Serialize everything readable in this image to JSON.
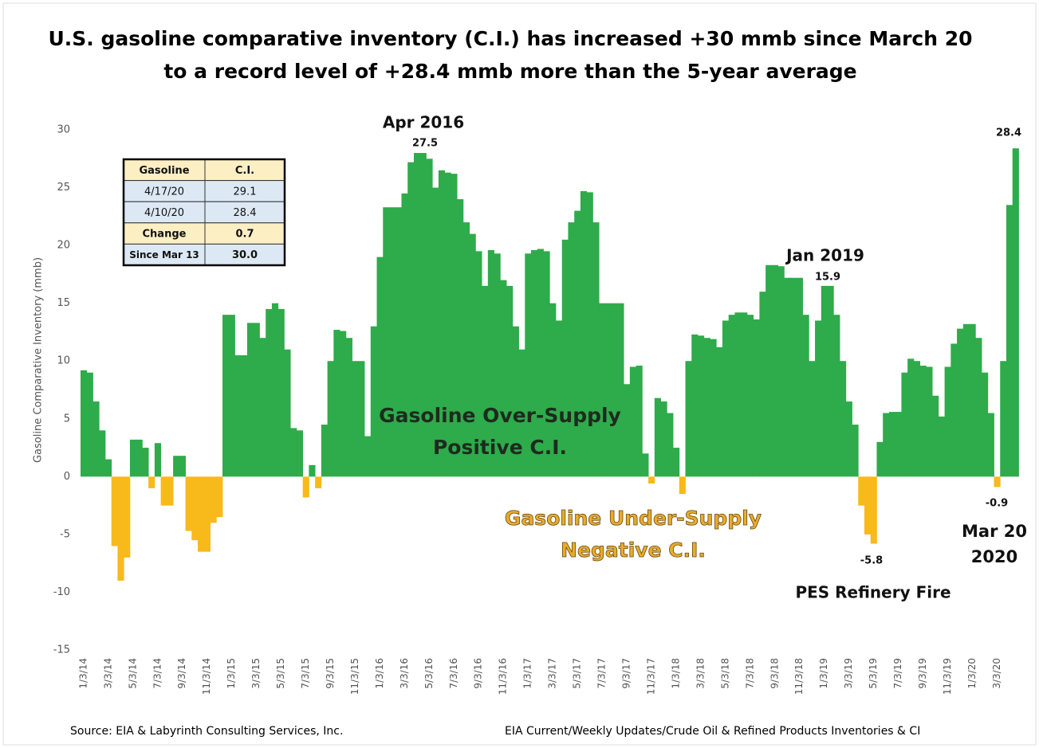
{
  "chart_data": {
    "type": "bar",
    "title": [
      "U.S. gasoline comparative inventory (C.I.) has increased +30 mmb since March 20",
      "to a record level of +28.4 mmb more than the 5-year average"
    ],
    "y_label": "Gasoline Comparative Inventory (mmb)",
    "categories": [
      "1/3/14",
      null,
      null,
      null,
      "3/3/14",
      null,
      null,
      null,
      "5/3/14",
      null,
      null,
      null,
      "7/3/14",
      null,
      null,
      null,
      "9/3/14",
      null,
      null,
      null,
      "11/3/14",
      null,
      null,
      null,
      "1/3/15",
      null,
      null,
      null,
      "3/3/15",
      null,
      null,
      null,
      "5/3/15",
      null,
      null,
      null,
      "7/3/15",
      null,
      null,
      null,
      "9/3/15",
      null,
      null,
      null,
      "11/3/15",
      null,
      null,
      null,
      "1/3/16",
      null,
      null,
      null,
      "3/3/16",
      null,
      null,
      null,
      "5/3/16",
      null,
      null,
      null,
      "7/3/16",
      null,
      null,
      null,
      "9/3/16",
      null,
      null,
      null,
      "11/3/16",
      null,
      null,
      null,
      "1/3/17",
      null,
      null,
      null,
      "3/3/17",
      null,
      null,
      null,
      "5/3/17",
      null,
      null,
      null,
      "7/3/17",
      null,
      null,
      null,
      "9/3/17",
      null,
      null,
      null,
      "11/3/17",
      null,
      null,
      null,
      "1/3/18",
      null,
      null,
      null,
      "3/3/18",
      null,
      null,
      null,
      "5/3/18",
      null,
      null,
      null,
      "7/3/18",
      null,
      null,
      null,
      "9/3/18",
      null,
      null,
      null,
      "11/3/18",
      null,
      null,
      null,
      "1/3/19",
      null,
      null,
      null,
      "3/3/19",
      null,
      null,
      null,
      "5/3/19",
      null,
      null,
      null,
      "7/3/19",
      null,
      null,
      null,
      "9/3/19",
      null,
      null,
      null,
      "11/3/19",
      null,
      null,
      null,
      "1/3/20",
      null,
      null,
      null,
      "3/3/20",
      null,
      null,
      null
    ],
    "values": [
      9.2,
      9,
      6.5,
      4,
      1.5,
      -6,
      -9,
      -7,
      3.2,
      3.2,
      2.5,
      -1,
      2.9,
      -2.5,
      -2.5,
      1.8,
      1.8,
      -4.7,
      -5.5,
      -6.5,
      -6.5,
      -4,
      -3.5,
      14,
      14,
      10.5,
      10.5,
      13.3,
      13.3,
      12,
      14.5,
      15,
      14.5,
      11,
      4.2,
      4,
      -1.8,
      1,
      -1,
      4.5,
      10,
      12.7,
      12.6,
      12,
      10,
      10,
      3.5,
      13,
      19,
      23.3,
      23.3,
      23.3,
      24.5,
      27.2,
      28,
      28,
      27.5,
      25,
      26.5,
      26.3,
      26.2,
      24,
      22,
      21,
      19.5,
      16.5,
      19.6,
      19.3,
      17,
      16.5,
      13,
      11,
      19.3,
      19.6,
      19.7,
      19.5,
      15,
      13.5,
      20.5,
      22,
      23,
      24.7,
      24.6,
      22,
      15,
      15,
      15,
      15,
      8,
      9.5,
      9.6,
      2,
      -0.6,
      6.8,
      6.5,
      5.5,
      2.5,
      -1.5,
      10,
      12.3,
      12.2,
      12,
      11.9,
      11.2,
      13.5,
      14,
      14.2,
      14.2,
      14,
      13.6,
      16,
      18.3,
      18.3,
      18.2,
      17.2,
      17.2,
      17.2,
      14,
      10,
      13.5,
      16.5,
      16.5,
      14,
      10,
      6.5,
      4.5,
      -2.5,
      -5,
      -5.8,
      3,
      5.5,
      5.6,
      5.6,
      9,
      10.2,
      10,
      9.6,
      9.5,
      7,
      5.2,
      9.5,
      11.5,
      12.8,
      13.2,
      13.2,
      12,
      9,
      5.5,
      -0.9,
      10,
      23.5,
      28.4
    ],
    "positive_color": "#2eab4b",
    "negative_color": "#f8b91a",
    "ylim": [
      -15,
      30
    ],
    "yticks": [
      -15,
      -10,
      -5,
      0,
      5,
      10,
      15,
      20,
      25,
      30
    ],
    "grid": false,
    "annotations": [
      "Apr 2016",
      "27.5",
      "Jan 2019",
      "15.9",
      "28.4",
      "-0.9",
      "Mar 20",
      "2020",
      "-5.8",
      "PES Refinery Fire",
      "Gasoline Over-Supply",
      "Positive C.I.",
      "Gasoline Under-Supply",
      "Negative C.I."
    ],
    "inset_table": {
      "header": [
        "Gasoline",
        "C.I."
      ],
      "rows": [
        [
          "4/17/20",
          "29.1"
        ],
        [
          "4/10/20",
          "28.4"
        ],
        [
          "Change",
          "0.7"
        ],
        [
          "Since Mar 13",
          "30.0"
        ]
      ]
    },
    "source": "Source: EIA & Labyrinth Consulting Services, Inc.",
    "source_right": "EIA Current/Weekly Updates/Crude Oil & Refined Products Inventories & CI"
  }
}
